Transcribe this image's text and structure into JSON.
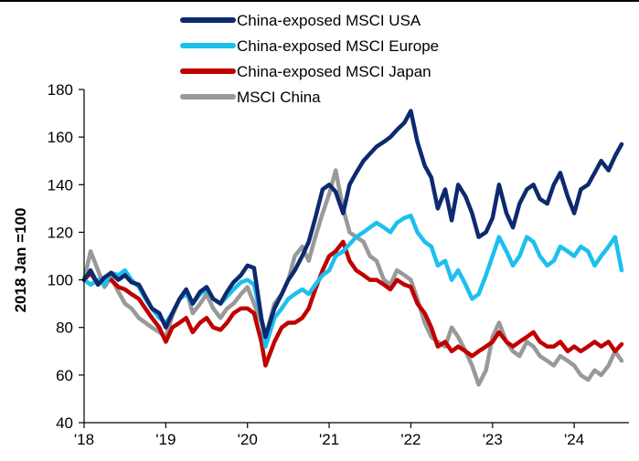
{
  "chart_data": {
    "type": "line",
    "title": "",
    "xlabel": "",
    "ylabel": "2018 Jan =100",
    "ylim": [
      40,
      180
    ],
    "yticks": [
      40,
      60,
      80,
      100,
      120,
      140,
      160,
      180
    ],
    "xlim": [
      2018.0,
      2024.67
    ],
    "xticks": [
      {
        "value": 2018,
        "label": "'18"
      },
      {
        "value": 2019,
        "label": "'19"
      },
      {
        "value": 2020,
        "label": "'20"
      },
      {
        "value": 2021,
        "label": "'21"
      },
      {
        "value": 2022,
        "label": "'22"
      },
      {
        "value": 2023,
        "label": "'23"
      },
      {
        "value": 2024,
        "label": "'24"
      }
    ],
    "legend_position": "top-center",
    "grid": false,
    "series": [
      {
        "name": "China-exposed MSCI USA",
        "color": "#0d2a6e",
        "x": [
          2018.0,
          2018.08,
          2018.17,
          2018.25,
          2018.33,
          2018.42,
          2018.5,
          2018.58,
          2018.67,
          2018.75,
          2018.83,
          2018.92,
          2019.0,
          2019.08,
          2019.17,
          2019.25,
          2019.33,
          2019.42,
          2019.5,
          2019.58,
          2019.67,
          2019.75,
          2019.83,
          2019.92,
          2020.0,
          2020.08,
          2020.17,
          2020.22,
          2020.33,
          2020.42,
          2020.5,
          2020.58,
          2020.67,
          2020.75,
          2020.83,
          2020.92,
          2021.0,
          2021.08,
          2021.17,
          2021.25,
          2021.33,
          2021.42,
          2021.5,
          2021.58,
          2021.67,
          2021.75,
          2021.83,
          2021.92,
          2022.0,
          2022.08,
          2022.17,
          2022.25,
          2022.33,
          2022.42,
          2022.5,
          2022.58,
          2022.67,
          2022.75,
          2022.83,
          2022.92,
          2023.0,
          2023.08,
          2023.17,
          2023.25,
          2023.33,
          2023.42,
          2023.5,
          2023.58,
          2023.67,
          2023.75,
          2023.83,
          2023.92,
          2024.0,
          2024.08,
          2024.17,
          2024.25,
          2024.33,
          2024.42,
          2024.5,
          2024.58
        ],
        "values": [
          100,
          104,
          98,
          101,
          103,
          100,
          102,
          99,
          98,
          93,
          88,
          86,
          80,
          86,
          92,
          96,
          90,
          95,
          97,
          92,
          90,
          95,
          99,
          102,
          106,
          105,
          84,
          76,
          88,
          94,
          100,
          104,
          110,
          116,
          126,
          138,
          140,
          137,
          128,
          140,
          145,
          150,
          153,
          156,
          158,
          160,
          163,
          166,
          171,
          158,
          148,
          143,
          130,
          138,
          125,
          140,
          135,
          128,
          118,
          120,
          126,
          140,
          128,
          122,
          132,
          138,
          140,
          134,
          132,
          140,
          145,
          135,
          128,
          138,
          140,
          145,
          150,
          146,
          152,
          157
        ]
      },
      {
        "name": "China-exposed MSCI Europe",
        "color": "#1cc0ee",
        "x": [
          2018.0,
          2018.08,
          2018.17,
          2018.25,
          2018.33,
          2018.42,
          2018.5,
          2018.58,
          2018.67,
          2018.75,
          2018.83,
          2018.92,
          2019.0,
          2019.08,
          2019.17,
          2019.25,
          2019.33,
          2019.42,
          2019.5,
          2019.58,
          2019.67,
          2019.75,
          2019.83,
          2019.92,
          2020.0,
          2020.08,
          2020.17,
          2020.22,
          2020.33,
          2020.42,
          2020.5,
          2020.58,
          2020.67,
          2020.75,
          2020.83,
          2020.92,
          2021.0,
          2021.08,
          2021.17,
          2021.25,
          2021.33,
          2021.42,
          2021.5,
          2021.58,
          2021.67,
          2021.75,
          2021.83,
          2021.92,
          2022.0,
          2022.08,
          2022.17,
          2022.25,
          2022.33,
          2022.42,
          2022.5,
          2022.58,
          2022.67,
          2022.75,
          2022.83,
          2022.92,
          2023.0,
          2023.08,
          2023.17,
          2023.25,
          2023.33,
          2023.42,
          2023.5,
          2023.58,
          2023.67,
          2023.75,
          2023.83,
          2023.92,
          2024.0,
          2024.08,
          2024.17,
          2024.25,
          2024.33,
          2024.42,
          2024.5,
          2024.58
        ],
        "values": [
          100,
          98,
          100,
          98,
          103,
          102,
          104,
          100,
          97,
          92,
          88,
          84,
          82,
          86,
          92,
          94,
          90,
          94,
          96,
          92,
          90,
          93,
          96,
          99,
          100,
          98,
          84,
          72,
          84,
          88,
          92,
          94,
          96,
          94,
          98,
          102,
          104,
          110,
          112,
          115,
          118,
          120,
          122,
          124,
          122,
          120,
          124,
          126,
          127,
          120,
          116,
          114,
          106,
          108,
          100,
          104,
          98,
          92,
          94,
          102,
          110,
          118,
          112,
          106,
          110,
          118,
          116,
          110,
          106,
          108,
          114,
          112,
          110,
          114,
          112,
          106,
          110,
          114,
          118,
          104
        ]
      },
      {
        "name": "China-exposed MSCI Japan",
        "color": "#c00000",
        "x": [
          2018.0,
          2018.08,
          2018.17,
          2018.25,
          2018.33,
          2018.42,
          2018.5,
          2018.58,
          2018.67,
          2018.75,
          2018.83,
          2018.92,
          2019.0,
          2019.08,
          2019.17,
          2019.25,
          2019.33,
          2019.42,
          2019.5,
          2019.58,
          2019.67,
          2019.75,
          2019.83,
          2019.92,
          2020.0,
          2020.08,
          2020.17,
          2020.22,
          2020.33,
          2020.42,
          2020.5,
          2020.58,
          2020.67,
          2020.75,
          2020.83,
          2020.92,
          2021.0,
          2021.08,
          2021.17,
          2021.25,
          2021.33,
          2021.42,
          2021.5,
          2021.58,
          2021.67,
          2021.75,
          2021.83,
          2021.92,
          2022.0,
          2022.08,
          2022.17,
          2022.25,
          2022.33,
          2022.42,
          2022.5,
          2022.58,
          2022.67,
          2022.75,
          2022.83,
          2022.92,
          2023.0,
          2023.08,
          2023.17,
          2023.25,
          2023.33,
          2023.42,
          2023.5,
          2023.58,
          2023.67,
          2023.75,
          2023.83,
          2023.92,
          2024.0,
          2024.08,
          2024.17,
          2024.25,
          2024.33,
          2024.42,
          2024.5,
          2024.58
        ],
        "values": [
          100,
          103,
          98,
          101,
          100,
          97,
          96,
          94,
          92,
          88,
          84,
          80,
          74,
          80,
          82,
          84,
          78,
          82,
          84,
          80,
          79,
          82,
          86,
          88,
          88,
          86,
          74,
          64,
          74,
          80,
          82,
          82,
          84,
          88,
          96,
          104,
          110,
          112,
          116,
          108,
          104,
          102,
          100,
          100,
          98,
          96,
          100,
          98,
          97,
          90,
          86,
          80,
          72,
          74,
          70,
          72,
          70,
          68,
          70,
          72,
          74,
          78,
          74,
          72,
          74,
          76,
          78,
          74,
          72,
          72,
          74,
          70,
          72,
          70,
          72,
          74,
          72,
          74,
          70,
          73
        ]
      },
      {
        "name": "MSCI China",
        "color": "#999999",
        "x": [
          2018.0,
          2018.08,
          2018.17,
          2018.25,
          2018.33,
          2018.42,
          2018.5,
          2018.58,
          2018.67,
          2018.75,
          2018.83,
          2018.92,
          2019.0,
          2019.08,
          2019.17,
          2019.25,
          2019.33,
          2019.42,
          2019.5,
          2019.58,
          2019.67,
          2019.75,
          2019.83,
          2019.92,
          2020.0,
          2020.08,
          2020.17,
          2020.22,
          2020.33,
          2020.42,
          2020.5,
          2020.58,
          2020.67,
          2020.75,
          2020.83,
          2020.92,
          2021.0,
          2021.08,
          2021.17,
          2021.25,
          2021.33,
          2021.42,
          2021.5,
          2021.58,
          2021.67,
          2021.75,
          2021.83,
          2021.92,
          2022.0,
          2022.08,
          2022.17,
          2022.25,
          2022.33,
          2022.42,
          2022.5,
          2022.58,
          2022.67,
          2022.75,
          2022.83,
          2022.92,
          2023.0,
          2023.08,
          2023.17,
          2023.25,
          2023.33,
          2023.42,
          2023.5,
          2023.58,
          2023.67,
          2023.75,
          2023.83,
          2023.92,
          2024.0,
          2024.08,
          2024.17,
          2024.25,
          2024.33,
          2024.42,
          2024.5,
          2024.58
        ],
        "values": [
          100,
          112,
          104,
          97,
          101,
          95,
          90,
          88,
          84,
          82,
          80,
          78,
          76,
          85,
          92,
          96,
          86,
          90,
          94,
          88,
          84,
          88,
          90,
          94,
          97,
          90,
          82,
          76,
          90,
          94,
          100,
          110,
          114,
          108,
          118,
          128,
          136,
          146,
          130,
          120,
          118,
          116,
          110,
          108,
          100,
          98,
          104,
          102,
          100,
          92,
          82,
          76,
          74,
          72,
          80,
          76,
          70,
          64,
          56,
          62,
          76,
          82,
          74,
          70,
          68,
          74,
          72,
          68,
          66,
          64,
          68,
          66,
          64,
          60,
          58,
          62,
          60,
          64,
          70,
          66
        ]
      }
    ]
  }
}
